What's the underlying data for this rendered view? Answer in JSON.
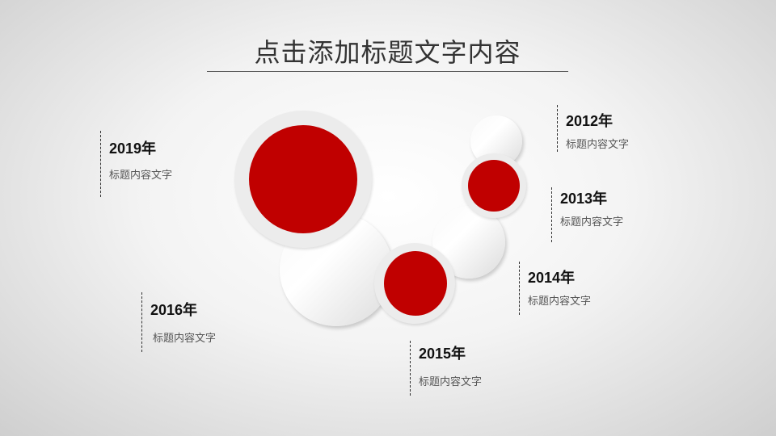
{
  "title": "点击添加标题文字内容",
  "accent_color": "#c00000",
  "milestones": [
    {
      "year": "2012年",
      "text": "标题内容文字"
    },
    {
      "year": "2013年",
      "text": "标题内容文字"
    },
    {
      "year": "2014年",
      "text": "标题内容文字"
    },
    {
      "year": "2015年",
      "text": "标题内容文字"
    },
    {
      "year": "2016年",
      "text": "标题内容文字"
    },
    {
      "year": "2019年",
      "text": "标题内容文字"
    }
  ]
}
